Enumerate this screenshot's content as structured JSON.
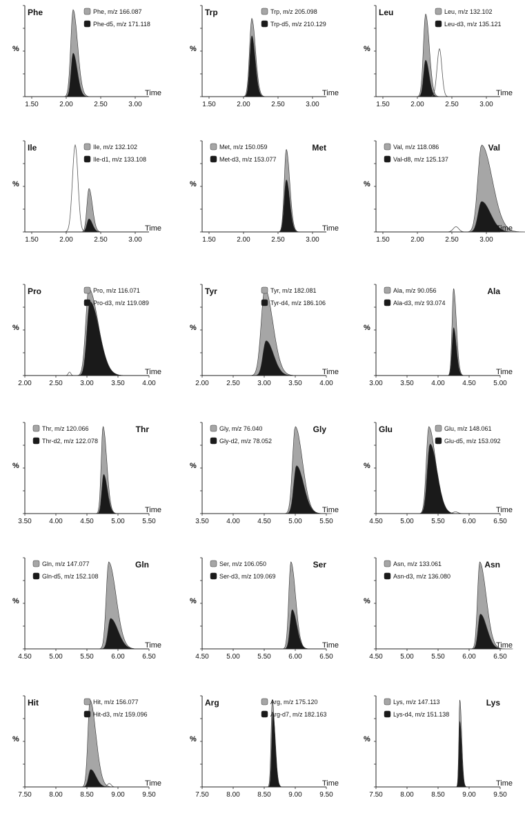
{
  "figure": {
    "y_label": "%",
    "x_label": "Time"
  },
  "chart_data": [
    {
      "type": "area",
      "title": "Phe",
      "xlim": [
        1.4,
        3.2
      ],
      "xticks": [
        "1.50",
        "2.00",
        "2.50",
        "3.00"
      ],
      "legend_placement": "top-right",
      "title_position": "left",
      "series": [
        {
          "name": "Phe, m/z 166.087",
          "color": "#a6a6a6",
          "peak_x": 2.1,
          "peak_height": 1.0,
          "width": 0.035,
          "tail": 0.03
        },
        {
          "name": "Phe-d5, m/z 171.118",
          "color": "#1a1a1a",
          "peak_x": 2.1,
          "peak_height": 0.5,
          "width": 0.03,
          "tail": 0.03
        }
      ]
    },
    {
      "type": "area",
      "title": "Trp",
      "xlim": [
        1.4,
        3.2
      ],
      "xticks": [
        "1.50",
        "2.00",
        "2.50",
        "3.00"
      ],
      "legend_placement": "top-right",
      "title_position": "left",
      "series": [
        {
          "name": "Trp, m/z 205.098",
          "color": "#a6a6a6",
          "peak_x": 2.12,
          "peak_height": 0.9,
          "width": 0.033,
          "tail": 0.02
        },
        {
          "name": "Trp-d5, m/z 210.129",
          "color": "#1a1a1a",
          "peak_x": 2.12,
          "peak_height": 0.7,
          "width": 0.03,
          "tail": 0.02
        }
      ]
    },
    {
      "type": "area",
      "title": "Leu",
      "xlim": [
        1.4,
        3.2
      ],
      "xticks": [
        "1.50",
        "2.00",
        "2.50",
        "3.00"
      ],
      "legend_placement": "top-right",
      "title_position": "left",
      "series": [
        {
          "name": "Leu, m/z 132.102",
          "color": "#a6a6a6",
          "peak_x": 2.12,
          "peak_height": 0.95,
          "width": 0.033,
          "tail": 0.02
        },
        {
          "name": "Leu-d3, m/z 135.121",
          "color": "#1a1a1a",
          "peak_x": 2.12,
          "peak_height": 0.42,
          "width": 0.03,
          "tail": 0.02
        }
      ],
      "outline_peaks": [
        {
          "peak_x": 2.32,
          "peak_height": 0.55,
          "width": 0.035
        }
      ]
    },
    {
      "type": "area",
      "title": "Ile",
      "xlim": [
        1.4,
        3.2
      ],
      "xticks": [
        "1.50",
        "2.00",
        "2.50",
        "3.00"
      ],
      "legend_placement": "top-right",
      "title_position": "left",
      "series": [
        {
          "name": "Ile, m/z 132.102",
          "color": "#a6a6a6",
          "peak_x": 2.33,
          "peak_height": 0.5,
          "width": 0.03,
          "tail": 0.02
        },
        {
          "name": "Ile-d1, m/z 133.108",
          "color": "#1a1a1a",
          "peak_x": 2.33,
          "peak_height": 0.15,
          "width": 0.03,
          "tail": 0.02
        }
      ],
      "outline_peaks": [
        {
          "peak_x": 2.13,
          "peak_height": 1.0,
          "width": 0.04
        }
      ]
    },
    {
      "type": "area",
      "title": "Met",
      "xlim": [
        1.4,
        3.2
      ],
      "xticks": [
        "1.50",
        "2.00",
        "2.50",
        "3.00"
      ],
      "legend_placement": "top-left",
      "title_position": "right",
      "series": [
        {
          "name": "Met, m/z 150.059",
          "color": "#a6a6a6",
          "peak_x": 2.62,
          "peak_height": 0.95,
          "width": 0.03,
          "tail": 0.02
        },
        {
          "name": "Met-d3, m/z 153.077",
          "color": "#1a1a1a",
          "peak_x": 2.62,
          "peak_height": 0.6,
          "width": 0.03,
          "tail": 0.02
        }
      ]
    },
    {
      "type": "area",
      "title": "Val",
      "xlim": [
        1.4,
        3.2
      ],
      "xticks": [
        "1.50",
        "2.00",
        "2.50",
        "3.00"
      ],
      "legend_placement": "top-left",
      "title_position": "right",
      "series": [
        {
          "name": "Val, m/z 118.086",
          "color": "#a6a6a6",
          "peak_x": 2.93,
          "peak_height": 1.0,
          "width": 0.055,
          "tail": 0.1
        },
        {
          "name": "Val-d8, m/z 125.137",
          "color": "#1a1a1a",
          "peak_x": 2.93,
          "peak_height": 0.35,
          "width": 0.05,
          "tail": 0.08
        }
      ],
      "outline_peaks": [
        {
          "peak_x": 2.56,
          "peak_height": 0.06,
          "width": 0.04
        }
      ]
    },
    {
      "type": "area",
      "title": "Pro",
      "xlim": [
        2.0,
        4.0
      ],
      "xticks": [
        "2.00",
        "2.50",
        "3.00",
        "3.50",
        "4.00"
      ],
      "legend_placement": "top-right",
      "title_position": "left",
      "series": [
        {
          "name": "Pro, m/z 116.071",
          "color": "#a6a6a6",
          "peak_x": 3.03,
          "peak_height": 1.0,
          "width": 0.05,
          "tail": 0.1
        },
        {
          "name": "Pro-d3, m/z 119.089",
          "color": "#1a1a1a",
          "peak_x": 3.05,
          "peak_height": 0.85,
          "width": 0.05,
          "tail": 0.1
        }
      ],
      "outline_peaks": [
        {
          "peak_x": 2.72,
          "peak_height": 0.04,
          "width": 0.02
        }
      ]
    },
    {
      "type": "area",
      "title": "Tyr",
      "xlim": [
        2.0,
        4.0
      ],
      "xticks": [
        "2.00",
        "2.50",
        "3.00",
        "3.50",
        "4.00"
      ],
      "legend_placement": "top-right",
      "title_position": "left",
      "series": [
        {
          "name": "Tyr, m/z 182.081",
          "color": "#a6a6a6",
          "peak_x": 3.01,
          "peak_height": 1.0,
          "width": 0.06,
          "tail": 0.07
        },
        {
          "name": "Tyr-d4, m/z 186.106",
          "color": "#1a1a1a",
          "peak_x": 3.03,
          "peak_height": 0.4,
          "width": 0.05,
          "tail": 0.07
        }
      ]
    },
    {
      "type": "area",
      "title": "Ala",
      "xlim": [
        3.0,
        5.0
      ],
      "xticks": [
        "3.00",
        "3.50",
        "4.00",
        "4.50",
        "5.00"
      ],
      "legend_placement": "top-left",
      "title_position": "right",
      "series": [
        {
          "name": "Ala, m/z 90.056",
          "color": "#a6a6a6",
          "peak_x": 4.25,
          "peak_height": 1.0,
          "width": 0.025,
          "tail": 0.02
        },
        {
          "name": "Ala-d3, m/z 93.074",
          "color": "#1a1a1a",
          "peak_x": 4.25,
          "peak_height": 0.55,
          "width": 0.025,
          "tail": 0.02
        }
      ]
    },
    {
      "type": "area",
      "title": "Thr",
      "xlim": [
        3.5,
        5.5
      ],
      "xticks": [
        "3.50",
        "4.00",
        "4.50",
        "5.00",
        "5.50"
      ],
      "legend_placement": "top-left",
      "title_position": "right",
      "series": [
        {
          "name": "Thr, m/z 120.066",
          "color": "#a6a6a6",
          "peak_x": 4.76,
          "peak_height": 1.0,
          "width": 0.03,
          "tail": 0.03
        },
        {
          "name": "Thr-d2, m/z 122.078",
          "color": "#1a1a1a",
          "peak_x": 4.77,
          "peak_height": 0.45,
          "width": 0.03,
          "tail": 0.03
        }
      ]
    },
    {
      "type": "area",
      "title": "Gly",
      "xlim": [
        3.5,
        5.5
      ],
      "xticks": [
        "3.50",
        "4.00",
        "4.50",
        "5.00",
        "5.50"
      ],
      "legend_placement": "top-left",
      "title_position": "right",
      "series": [
        {
          "name": "Gly, m/z 76.040",
          "color": "#a6a6a6",
          "peak_x": 5.0,
          "peak_height": 1.0,
          "width": 0.045,
          "tail": 0.07
        },
        {
          "name": "Gly-d2, m/z 78.052",
          "color": "#1a1a1a",
          "peak_x": 5.02,
          "peak_height": 0.55,
          "width": 0.045,
          "tail": 0.07
        }
      ]
    },
    {
      "type": "area",
      "title": "Glu",
      "xlim": [
        4.5,
        6.5
      ],
      "xticks": [
        "4.50",
        "5.00",
        "5.50",
        "6.00",
        "6.50"
      ],
      "legend_placement": "top-right",
      "title_position": "left",
      "series": [
        {
          "name": "Glu, m/z 148.061",
          "color": "#a6a6a6",
          "peak_x": 5.35,
          "peak_height": 1.0,
          "width": 0.04,
          "tail": 0.07
        },
        {
          "name": "Glu-d5, m/z 153.092",
          "color": "#1a1a1a",
          "peak_x": 5.37,
          "peak_height": 0.8,
          "width": 0.045,
          "tail": 0.07
        }
      ],
      "outline_peaks": [
        {
          "peak_x": 5.78,
          "peak_height": 0.02,
          "width": 0.04
        }
      ]
    },
    {
      "type": "area",
      "title": "Gln",
      "xlim": [
        4.5,
        6.5
      ],
      "xticks": [
        "4.50",
        "5.00",
        "5.50",
        "6.00",
        "6.50"
      ],
      "legend_placement": "top-left",
      "title_position": "right",
      "series": [
        {
          "name": "Gln, m/z 147.077",
          "color": "#a6a6a6",
          "peak_x": 5.85,
          "peak_height": 1.0,
          "width": 0.04,
          "tail": 0.08
        },
        {
          "name": "Gln-d5, m/z 152.108",
          "color": "#1a1a1a",
          "peak_x": 5.88,
          "peak_height": 0.35,
          "width": 0.04,
          "tail": 0.08
        }
      ]
    },
    {
      "type": "area",
      "title": "Ser",
      "xlim": [
        4.5,
        6.5
      ],
      "xticks": [
        "4.50",
        "5.00",
        "5.50",
        "6.00",
        "6.50"
      ],
      "legend_placement": "top-left",
      "title_position": "right",
      "series": [
        {
          "name": "Ser, m/z 106.050",
          "color": "#a6a6a6",
          "peak_x": 5.93,
          "peak_height": 1.0,
          "width": 0.035,
          "tail": 0.04
        },
        {
          "name": "Ser-d3, m/z 109.069",
          "color": "#1a1a1a",
          "peak_x": 5.95,
          "peak_height": 0.45,
          "width": 0.035,
          "tail": 0.04
        }
      ]
    },
    {
      "type": "area",
      "title": "Asn",
      "xlim": [
        4.5,
        6.5
      ],
      "xticks": [
        "4.50",
        "5.00",
        "5.50",
        "6.00",
        "6.50"
      ],
      "legend_placement": "top-left",
      "title_position": "right",
      "series": [
        {
          "name": "Asn, m/z 133.061",
          "color": "#a6a6a6",
          "peak_x": 6.17,
          "peak_height": 1.0,
          "width": 0.035,
          "tail": 0.07
        },
        {
          "name": "Asn-d3, m/z 136.080",
          "color": "#1a1a1a",
          "peak_x": 6.18,
          "peak_height": 0.4,
          "width": 0.035,
          "tail": 0.07
        }
      ]
    },
    {
      "type": "area",
      "title": "Hit",
      "xlim": [
        7.5,
        9.5
      ],
      "xticks": [
        "7.50",
        "8.00",
        "8.50",
        "9.00",
        "9.50"
      ],
      "legend_placement": "top-right",
      "title_position": "left",
      "series": [
        {
          "name": "Hit, m/z 156.077",
          "color": "#a6a6a6",
          "peak_x": 8.55,
          "peak_height": 1.0,
          "width": 0.035,
          "tail": 0.06
        },
        {
          "name": "Hit-d3, m/z 159.096",
          "color": "#1a1a1a",
          "peak_x": 8.56,
          "peak_height": 0.2,
          "width": 0.035,
          "tail": 0.05
        }
      ],
      "outline_peaks": [
        {
          "peak_x": 8.86,
          "peak_height": 0.04,
          "width": 0.03
        }
      ]
    },
    {
      "type": "area",
      "title": "Arg",
      "xlim": [
        7.5,
        9.5
      ],
      "xticks": [
        "7.50",
        "8.00",
        "8.50",
        "9.00",
        "9.50"
      ],
      "legend_placement": "top-right",
      "title_position": "left",
      "series": [
        {
          "name": "Arg, m/z 175.120",
          "color": "#a6a6a6",
          "peak_x": 8.63,
          "peak_height": 1.0,
          "width": 0.02,
          "tail": 0.02
        },
        {
          "name": "Arg-d7, m/z 182.163",
          "color": "#1a1a1a",
          "peak_x": 8.64,
          "peak_height": 0.85,
          "width": 0.02,
          "tail": 0.02
        }
      ]
    },
    {
      "type": "area",
      "title": "Lys",
      "xlim": [
        7.5,
        9.5
      ],
      "xticks": [
        "7.50",
        "8.00",
        "8.50",
        "9.00",
        "9.50"
      ],
      "legend_placement": "top-left",
      "title_position": "right",
      "series": [
        {
          "name": "Lys, m/z 147.113",
          "color": "#a6a6a6",
          "peak_x": 8.85,
          "peak_height": 1.0,
          "width": 0.015,
          "tail": 0.015
        },
        {
          "name": "Lys-d4, m/z 151.138",
          "color": "#1a1a1a",
          "peak_x": 8.85,
          "peak_height": 0.75,
          "width": 0.015,
          "tail": 0.015
        }
      ]
    }
  ]
}
